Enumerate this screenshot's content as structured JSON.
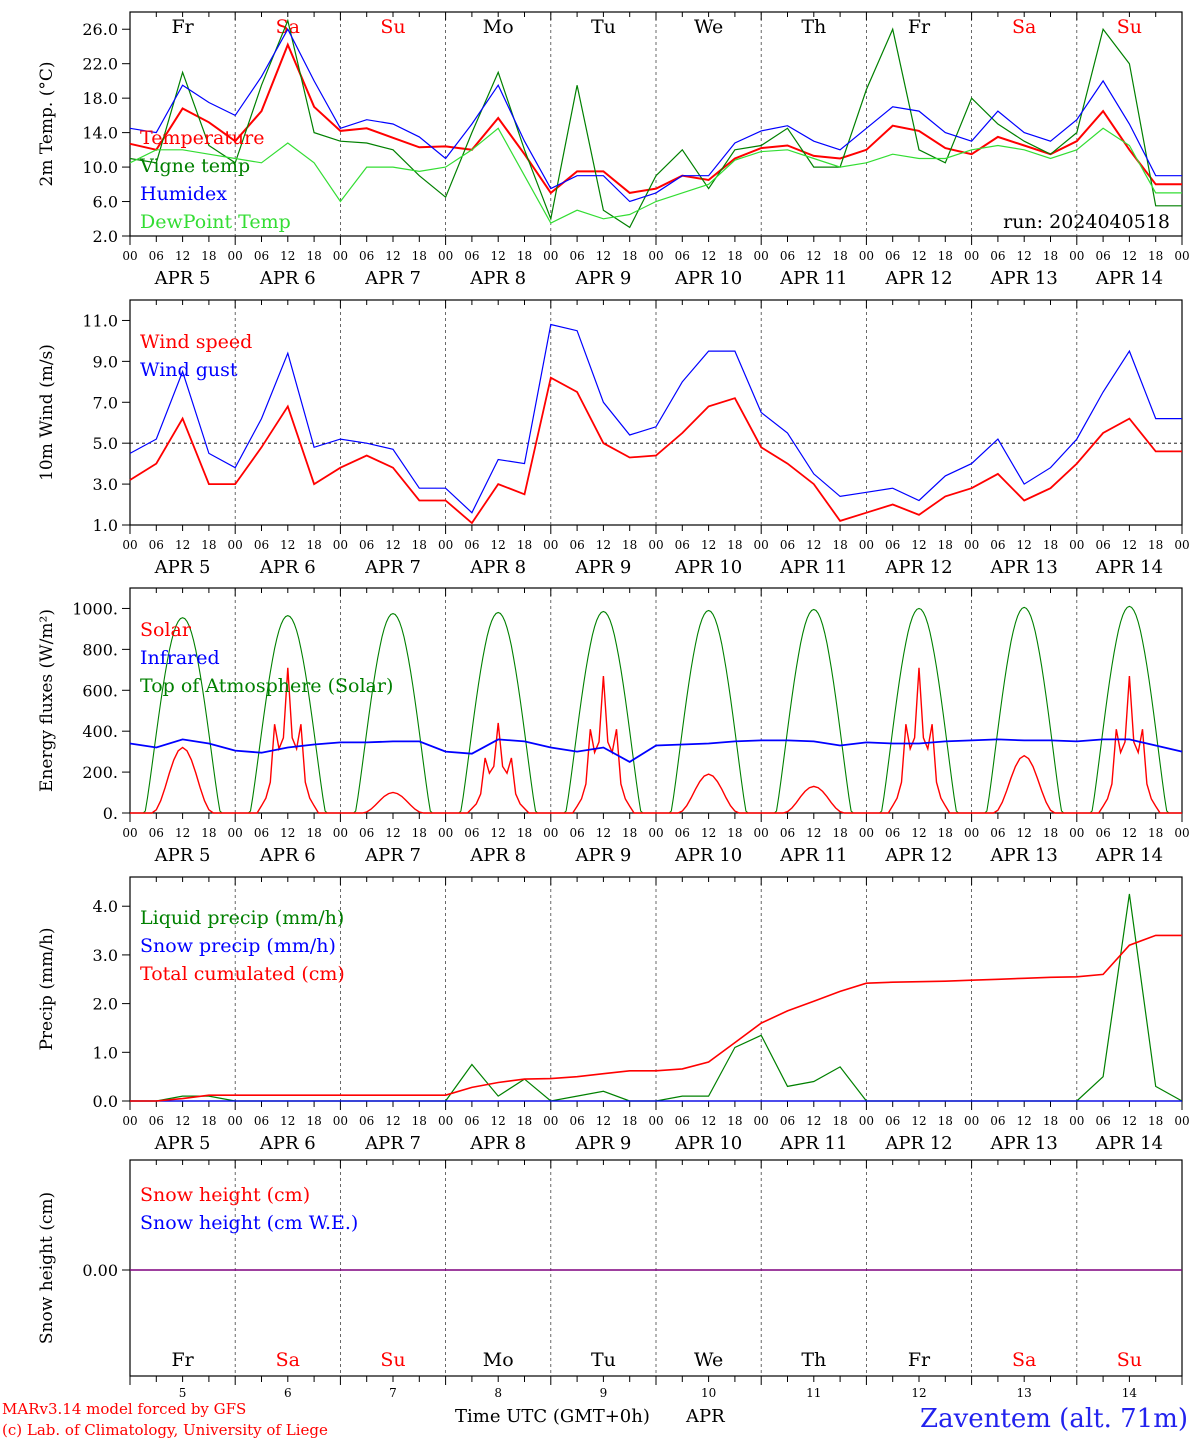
{
  "days": [
    "Fr",
    "Sa",
    "Su",
    "Mo",
    "Tu",
    "We",
    "Th",
    "Fr",
    "Sa",
    "Su"
  ],
  "weekend_days": [
    "Sa",
    "Su"
  ],
  "day_numbers": [
    "5",
    "6",
    "7",
    "8",
    "9",
    "10",
    "11",
    "12",
    "13",
    "14"
  ],
  "date_labels": [
    "APR  5",
    "APR  6",
    "APR  7",
    "APR  8",
    "APR  9",
    "APR 10",
    "APR 11",
    "APR 12",
    "APR 13",
    "APR 14"
  ],
  "hour_ticks": [
    "00",
    "06",
    "12",
    "18"
  ],
  "colors": {
    "red": "#ff0000",
    "green": "#008000",
    "blue": "#0000ff",
    "light_green": "#33dd33",
    "purple": "#7f007f",
    "weekend": "#ff0000"
  },
  "footer": {
    "model_line": "MARv3.14 model forced by GFS",
    "copyright_line": "(c) Lab. of Climatology, University of Liege",
    "xlabel": "Time UTC (GMT+0h)",
    "month": "APR",
    "station": "Zaventem (alt. 71m)"
  },
  "chart_data": [
    {
      "type": "line",
      "ylabel": "2m Temp. (°C)",
      "ylim": [
        2,
        28
      ],
      "yticks": [
        "2.0",
        "6.0",
        "10.0",
        "14.0",
        "18.0",
        "22.0",
        "26.0"
      ],
      "annotation": "run: 2024040518",
      "legend": [
        "Temperature",
        "Vigne temp",
        "Humidex",
        "DewPoint Temp"
      ],
      "x_hours": [
        0,
        6,
        12,
        18,
        24,
        30,
        36,
        42,
        48,
        54,
        60,
        66,
        72,
        78,
        84,
        90,
        96,
        102,
        108,
        114,
        120,
        126,
        132,
        138,
        144,
        150,
        156,
        162,
        168,
        174,
        180,
        186,
        192,
        198,
        204,
        210,
        216,
        222,
        228,
        234,
        240
      ],
      "series": [
        {
          "name": "Temperature",
          "color": "red",
          "values": [
            12.7,
            12.0,
            16.8,
            15.2,
            13.0,
            16.5,
            24.2,
            17.0,
            14.2,
            14.5,
            13.4,
            12.3,
            12.4,
            12.0,
            15.7,
            11.5,
            7.0,
            9.5,
            9.5,
            7.0,
            7.5,
            9.0,
            8.5,
            11.0,
            12.2,
            12.5,
            11.3,
            11.0,
            12.0,
            14.8,
            14.2,
            12.2,
            11.5,
            13.5,
            12.5,
            11.5,
            13.0,
            16.5,
            12.0,
            8.0,
            8.0
          ]
        },
        {
          "name": "Vigne temp",
          "color": "green",
          "values": [
            11.0,
            10.5,
            21.0,
            12.5,
            10.5,
            19.5,
            27.0,
            14.0,
            13.0,
            12.8,
            12.0,
            9.0,
            6.5,
            14.0,
            21.0,
            12.0,
            4.0,
            19.5,
            5.0,
            3.0,
            9.0,
            12.0,
            7.5,
            12.0,
            12.5,
            14.5,
            10.0,
            10.0,
            19.0,
            26.0,
            12.0,
            10.5,
            18.0,
            15.0,
            13.0,
            11.5,
            14.0,
            26.0,
            22.0,
            5.5,
            5.5
          ]
        },
        {
          "name": "Humidex",
          "color": "blue",
          "values": [
            14.5,
            14.0,
            19.5,
            17.5,
            16.0,
            20.5,
            26.0,
            20.0,
            14.5,
            15.5,
            15.0,
            13.5,
            11.0,
            15.0,
            19.5,
            13.0,
            7.5,
            9.0,
            9.0,
            6.0,
            7.0,
            9.0,
            9.0,
            12.8,
            14.2,
            14.8,
            13.0,
            12.0,
            14.5,
            17.0,
            16.5,
            14.0,
            13.0,
            16.5,
            14.0,
            13.0,
            15.5,
            20.0,
            15.0,
            9.0,
            9.0
          ]
        },
        {
          "name": "DewPoint Temp",
          "color": "light_green",
          "values": [
            10.5,
            12.0,
            12.0,
            11.5,
            11.0,
            10.5,
            12.8,
            10.5,
            6.0,
            10.0,
            10.0,
            9.5,
            10.0,
            12.0,
            14.5,
            9.0,
            3.5,
            5.0,
            4.0,
            4.5,
            6.0,
            7.0,
            8.0,
            10.8,
            11.8,
            12.0,
            11.0,
            10.0,
            10.5,
            11.5,
            11.0,
            11.0,
            12.0,
            12.5,
            12.0,
            11.0,
            12.0,
            14.5,
            12.5,
            7.0,
            7.0
          ]
        }
      ]
    },
    {
      "type": "line",
      "ylabel": "10m Wind (m/s)",
      "ylim": [
        1,
        12
      ],
      "yticks": [
        "1.0",
        "3.0",
        "5.0",
        "7.0",
        "9.0",
        "11.0"
      ],
      "reference_line": 5.0,
      "legend": [
        "Wind speed",
        "Wind gust"
      ],
      "x_hours": [
        0,
        6,
        12,
        18,
        24,
        30,
        36,
        42,
        48,
        54,
        60,
        66,
        72,
        78,
        84,
        90,
        96,
        102,
        108,
        114,
        120,
        126,
        132,
        138,
        144,
        150,
        156,
        162,
        168,
        174,
        180,
        186,
        192,
        198,
        204,
        210,
        216,
        222,
        228,
        234,
        240
      ],
      "series": [
        {
          "name": "Wind speed",
          "color": "red",
          "values": [
            3.2,
            4.0,
            6.2,
            3.0,
            3.0,
            4.8,
            6.8,
            3.0,
            3.8,
            4.4,
            3.8,
            2.2,
            2.2,
            1.1,
            3.0,
            2.5,
            8.2,
            7.5,
            5.0,
            4.3,
            4.4,
            5.5,
            6.8,
            7.2,
            4.8,
            4.0,
            3.0,
            1.2,
            1.6,
            2.0,
            1.5,
            2.4,
            2.8,
            3.5,
            2.2,
            2.8,
            4.0,
            5.5,
            6.2,
            4.6,
            4.6
          ]
        },
        {
          "name": "Wind gust",
          "color": "blue",
          "values": [
            4.5,
            5.2,
            8.5,
            4.5,
            3.8,
            6.2,
            9.4,
            4.8,
            5.2,
            5.0,
            4.7,
            2.8,
            2.8,
            1.6,
            4.2,
            4.0,
            10.8,
            10.5,
            7.0,
            5.4,
            5.8,
            8.0,
            9.5,
            9.5,
            6.5,
            5.5,
            3.5,
            2.4,
            2.6,
            2.8,
            2.2,
            3.4,
            4.0,
            5.2,
            3.0,
            3.8,
            5.2,
            7.5,
            9.5,
            6.2,
            6.2
          ]
        }
      ]
    },
    {
      "type": "line",
      "ylabel": "Energy fluxes (W/m²)",
      "ylim": [
        0,
        1100
      ],
      "yticks": [
        "0.",
        "200.",
        "400.",
        "600.",
        "800.",
        "1000."
      ],
      "legend": [
        "Solar",
        "Infrared",
        "Top of Atmosphere (Solar)"
      ],
      "toa_daily_peak": [
        955,
        965,
        975,
        980,
        985,
        990,
        995,
        1000,
        1005,
        1010
      ],
      "solar_daily_peak": [
        320,
        710,
        100,
        440,
        670,
        190,
        130,
        710,
        280,
        670
      ],
      "infrared": {
        "x_hours": [
          0,
          6,
          12,
          18,
          24,
          30,
          36,
          42,
          48,
          54,
          60,
          66,
          72,
          78,
          84,
          90,
          96,
          102,
          108,
          114,
          120,
          126,
          132,
          138,
          144,
          150,
          156,
          162,
          168,
          174,
          180,
          186,
          192,
          198,
          204,
          210,
          216,
          222,
          228,
          234,
          240
        ],
        "values": [
          340,
          320,
          360,
          340,
          305,
          295,
          320,
          335,
          345,
          345,
          350,
          350,
          300,
          290,
          360,
          350,
          320,
          300,
          320,
          250,
          330,
          335,
          340,
          350,
          355,
          355,
          350,
          330,
          345,
          340,
          340,
          350,
          355,
          360,
          355,
          355,
          350,
          360,
          360,
          330,
          300
        ]
      }
    },
    {
      "type": "line",
      "ylabel": "Precip (mm/h)",
      "ylim": [
        0,
        4.6
      ],
      "yticks": [
        "0.0",
        "1.0",
        "2.0",
        "3.0",
        "4.0"
      ],
      "legend": [
        "Liquid precip (mm/h)",
        "Snow precip (mm/h)",
        "Total cumulated (cm)"
      ],
      "x_hours": [
        0,
        6,
        12,
        18,
        24,
        30,
        36,
        42,
        48,
        54,
        60,
        66,
        72,
        78,
        84,
        90,
        96,
        102,
        108,
        114,
        120,
        126,
        132,
        138,
        144,
        150,
        156,
        162,
        168,
        174,
        180,
        186,
        192,
        198,
        204,
        210,
        216,
        222,
        228,
        234,
        240
      ],
      "series": [
        {
          "name": "Liquid precip (mm/h)",
          "color": "green",
          "values": [
            0,
            0,
            0.1,
            0.1,
            0,
            0,
            0,
            0,
            0,
            0,
            0,
            0,
            0,
            0.75,
            0.1,
            0.45,
            0,
            0.1,
            0.2,
            0,
            0,
            0.1,
            0.1,
            1.1,
            1.35,
            0.3,
            0.4,
            0.7,
            0,
            0,
            0,
            0,
            0,
            0,
            0,
            0,
            0,
            0.5,
            4.25,
            0.3,
            0
          ]
        },
        {
          "name": "Snow precip (mm/h)",
          "color": "blue",
          "values": [
            0,
            0,
            0,
            0,
            0,
            0,
            0,
            0,
            0,
            0,
            0,
            0,
            0,
            0,
            0,
            0,
            0,
            0,
            0,
            0,
            0,
            0,
            0,
            0,
            0,
            0,
            0,
            0,
            0,
            0,
            0,
            0,
            0,
            0,
            0,
            0,
            0,
            0,
            0,
            0,
            0
          ]
        },
        {
          "name": "Total cumulated (cm)",
          "color": "red",
          "values": [
            0,
            0,
            0.05,
            0.12,
            0.12,
            0.12,
            0.12,
            0.12,
            0.12,
            0.12,
            0.12,
            0.12,
            0.12,
            0.28,
            0.38,
            0.45,
            0.46,
            0.5,
            0.56,
            0.62,
            0.62,
            0.66,
            0.8,
            1.2,
            1.6,
            1.85,
            2.05,
            2.25,
            2.42,
            2.44,
            2.45,
            2.46,
            2.48,
            2.5,
            2.52,
            2.54,
            2.55,
            2.6,
            3.2,
            3.4,
            3.4
          ]
        }
      ]
    },
    {
      "type": "line",
      "ylabel": "Snow height (cm)",
      "yticks": [
        "0.00"
      ],
      "legend": [
        "Snow height (cm)",
        "Snow height (cm W.E.)"
      ],
      "series": [
        {
          "name": "Snow height (cm)",
          "color": "red",
          "values": [
            0,
            0
          ]
        },
        {
          "name": "Snow height (cm W.E.)",
          "color": "blue",
          "values": [
            0,
            0
          ]
        }
      ]
    }
  ]
}
